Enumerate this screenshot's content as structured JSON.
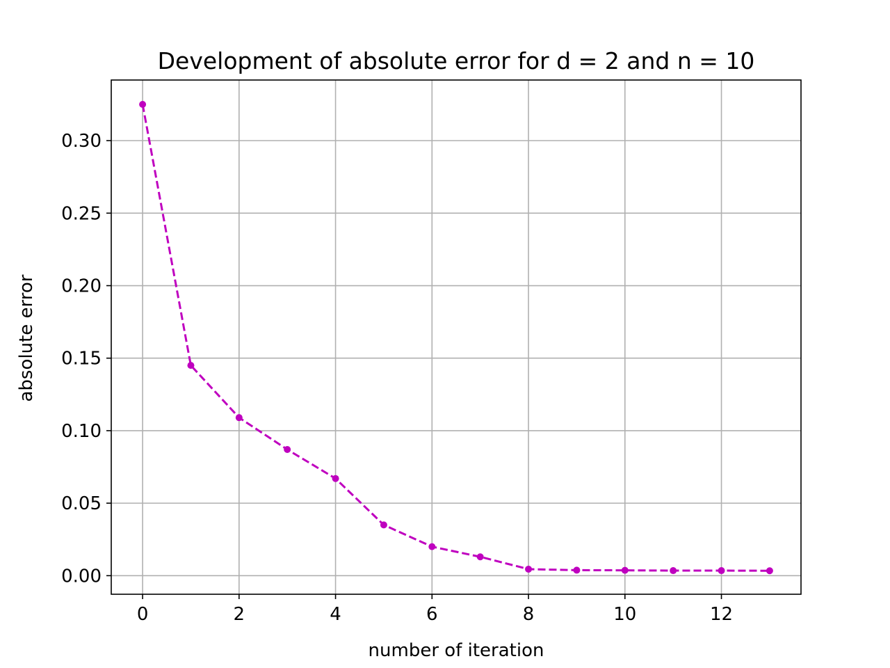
{
  "chart_data": {
    "type": "line",
    "title": "Development of absolute error for d = 2 and n = 10",
    "xlabel": "number of iteration",
    "ylabel": "absolute error",
    "xlim": [
      -0.65,
      13.65
    ],
    "ylim": [
      -0.0128,
      0.3418
    ],
    "xticks": [
      0,
      2,
      4,
      6,
      8,
      10,
      12
    ],
    "xtick_labels": [
      "0",
      "2",
      "4",
      "6",
      "8",
      "10",
      "12"
    ],
    "yticks": [
      0.0,
      0.05,
      0.1,
      0.15,
      0.2,
      0.25,
      0.3
    ],
    "ytick_labels": [
      "0.00",
      "0.05",
      "0.10",
      "0.15",
      "0.20",
      "0.25",
      "0.30"
    ],
    "grid": true,
    "series": [
      {
        "color": "#bf00bf",
        "line_style": "dashed",
        "marker": "dot",
        "x": [
          0,
          1,
          2,
          3,
          4,
          5,
          6,
          7,
          8,
          9,
          10,
          11,
          12,
          13
        ],
        "y": [
          0.325,
          0.145,
          0.109,
          0.087,
          0.067,
          0.035,
          0.02,
          0.013,
          0.0045,
          0.0038,
          0.0037,
          0.0035,
          0.0035,
          0.0034
        ]
      }
    ]
  }
}
